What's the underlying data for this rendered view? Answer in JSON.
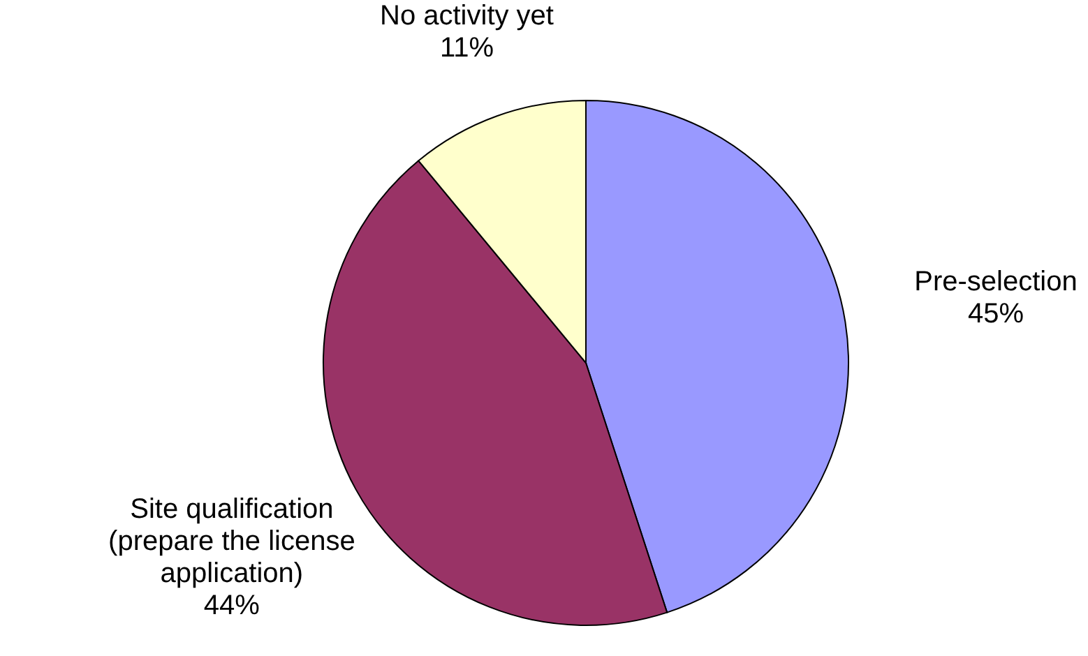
{
  "chart_data": {
    "type": "pie",
    "categories": [
      "Pre-selection",
      "Site qualification (prepare the license application)",
      "No activity yet"
    ],
    "values": [
      45,
      44,
      11
    ],
    "value_labels": [
      "45%",
      "44%",
      "11%"
    ],
    "colors": [
      "#9999ff",
      "#993366",
      "#ffffcc"
    ],
    "legend": false
  }
}
